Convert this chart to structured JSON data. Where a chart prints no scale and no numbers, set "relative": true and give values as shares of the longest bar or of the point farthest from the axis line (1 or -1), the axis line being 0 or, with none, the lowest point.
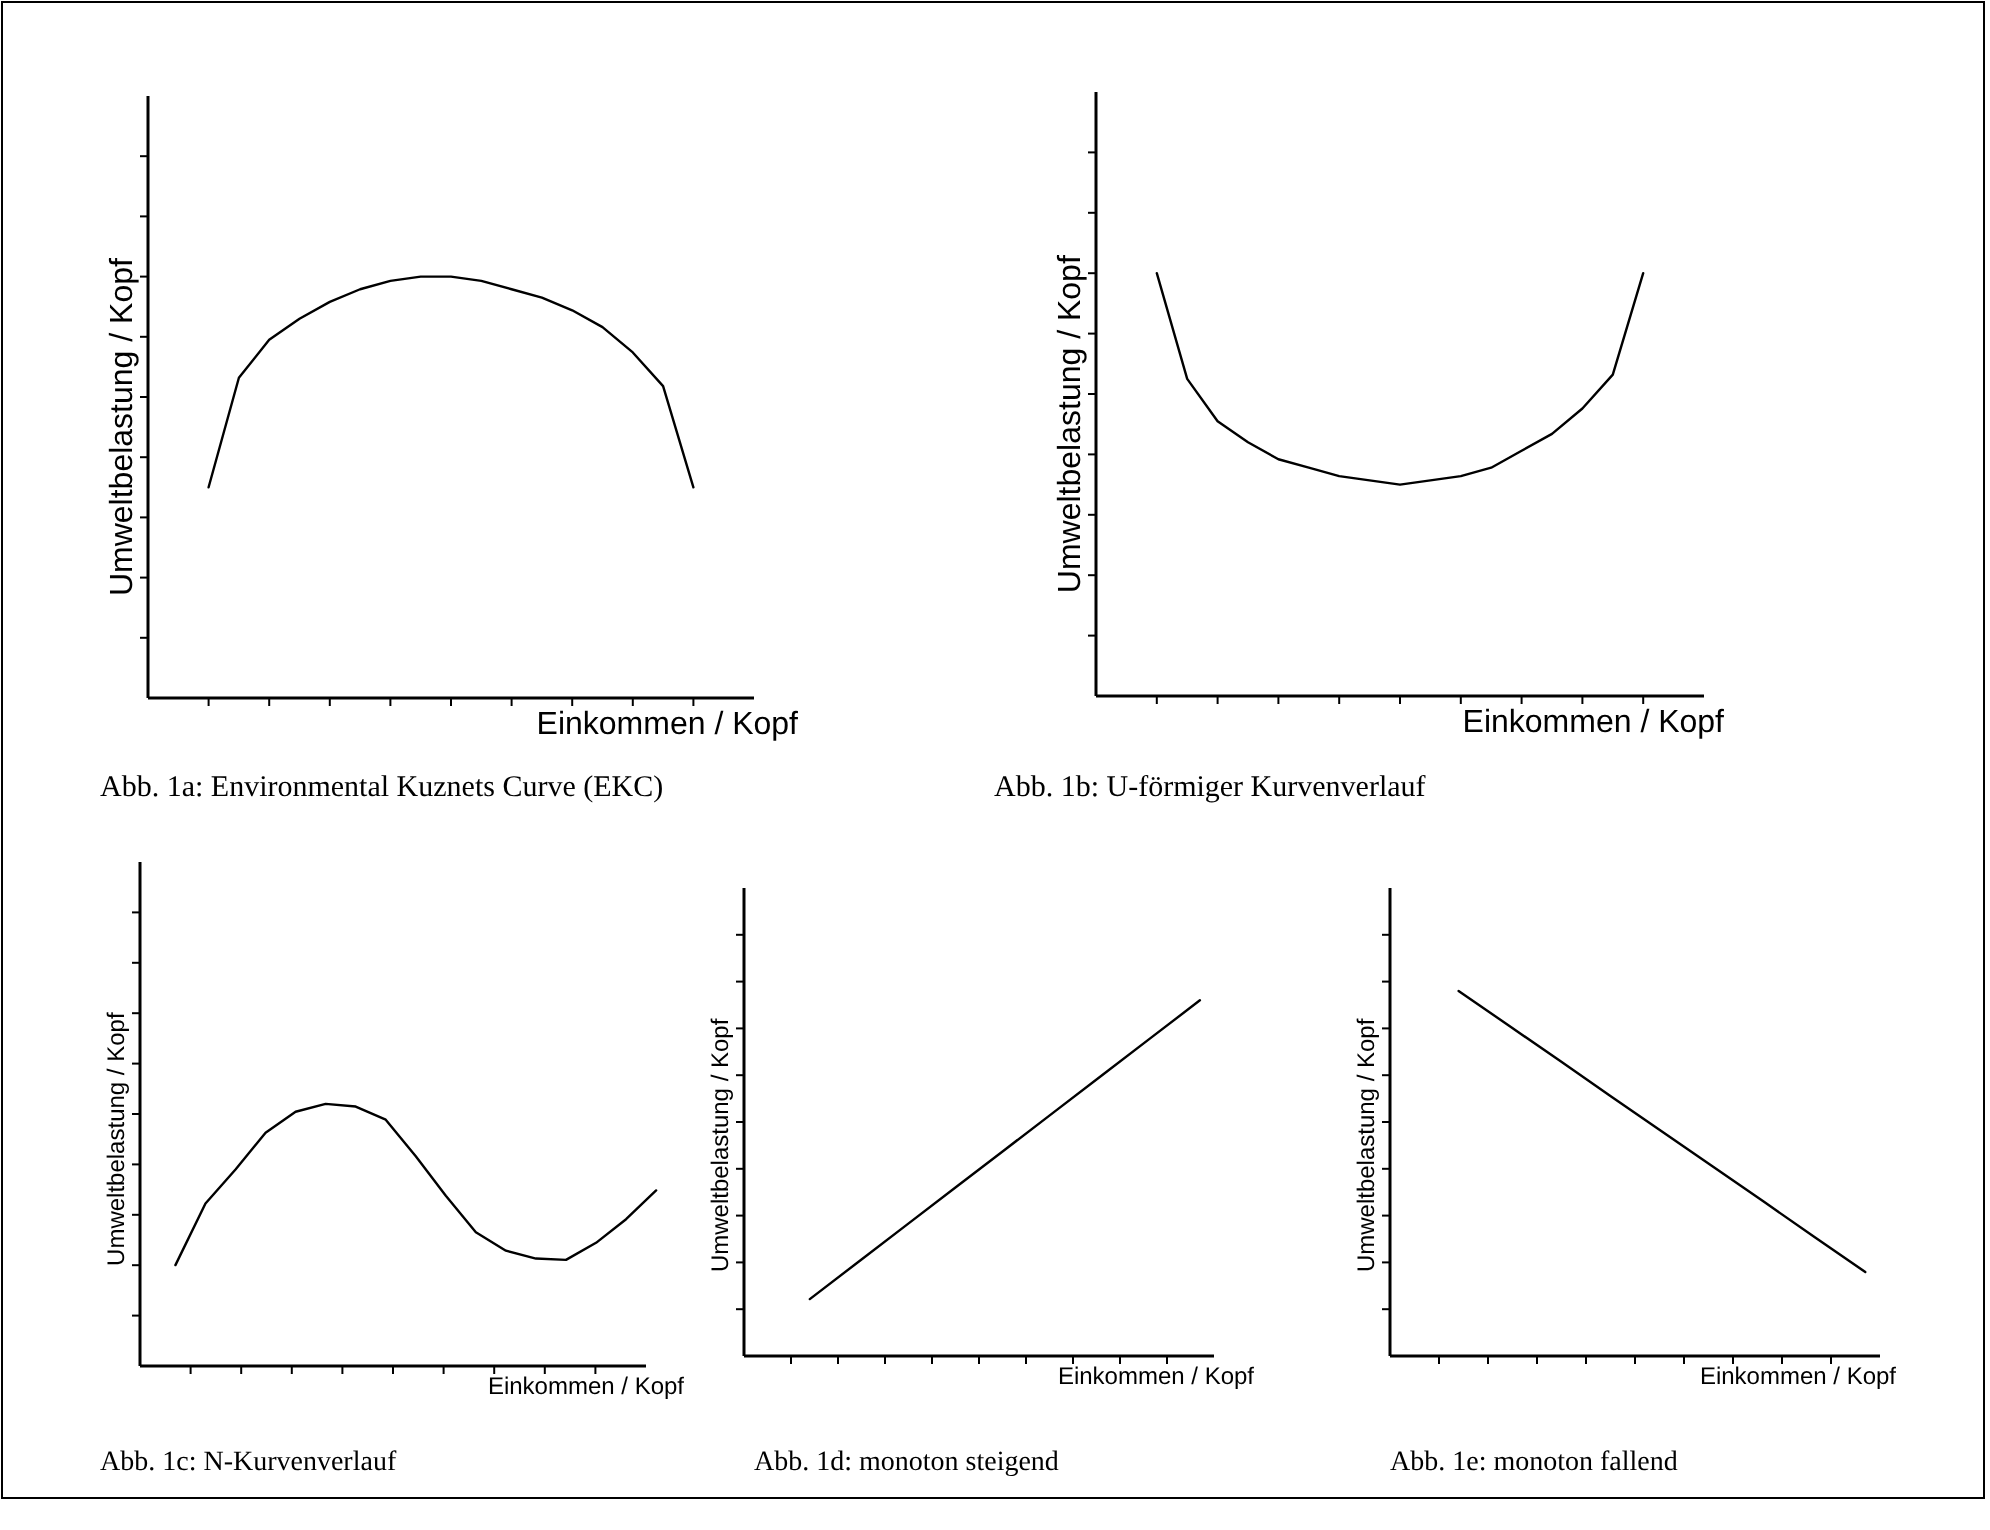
{
  "chart_data": [
    {
      "type": "line",
      "relative": true,
      "xlabel": "Einkommen / Kopf",
      "ylabel": "Umweltbelastung / Kopf",
      "annotations": [
        "Abb. 1a: Environmental Kuznets Curve (EKC)"
      ],
      "categories": [
        null,
        null,
        null,
        null,
        null,
        null,
        null,
        null,
        null,
        null,
        null,
        null,
        null,
        null,
        null,
        null,
        null
      ],
      "series": [
        {
          "color": "#000000",
          "values": [
            0.5,
            0.76,
            0.85,
            0.9,
            0.94,
            0.97,
            0.99,
            1,
            1,
            0.99,
            0.97,
            0.95,
            0.92,
            0.88,
            0.82,
            0.74,
            0.5
          ]
        }
      ]
    },
    {
      "type": "line",
      "relative": true,
      "xlabel": "Einkommen / Kopf",
      "ylabel": "Umweltbelastung / Kopf",
      "annotations": [
        "Abb. 1b: U-förmiger Kurvenverlauf"
      ],
      "categories": [
        null,
        null,
        null,
        null,
        null,
        null,
        null,
        null,
        null,
        null,
        null,
        null,
        null,
        null,
        null,
        null,
        null
      ],
      "series": [
        {
          "color": "#000000",
          "values": [
            1,
            0.75,
            0.65,
            0.6,
            0.56,
            0.54,
            0.52,
            0.51,
            0.5,
            0.51,
            0.52,
            0.54,
            0.58,
            0.62,
            0.68,
            0.76,
            1
          ]
        }
      ]
    },
    {
      "type": "line",
      "relative": true,
      "xlabel": "Einkommen / Kopf",
      "ylabel": "Umweltbelastung / Kopf",
      "annotations": [
        "Abb. 1c: N-Kurvenverlauf"
      ],
      "categories": [
        null,
        null,
        null,
        null,
        null,
        null,
        null,
        null,
        null,
        null,
        null,
        null,
        null,
        null,
        null,
        null,
        null
      ],
      "series": [
        {
          "color": "#000000",
          "values": [
            0.385,
            0.62,
            0.75,
            0.89,
            0.97,
            1,
            0.99,
            0.94,
            0.8,
            0.65,
            0.51,
            0.44,
            0.41,
            0.405,
            0.47,
            0.56,
            0.67
          ]
        }
      ]
    },
    {
      "type": "line",
      "relative": true,
      "xlabel": "Einkommen / Kopf",
      "ylabel": "Umweltbelastung / Kopf",
      "annotations": [
        "Abb. 1d: monoton steigend"
      ],
      "categories": [
        null,
        null,
        null,
        null,
        null,
        null,
        null,
        null,
        null
      ],
      "series": [
        {
          "color": "#000000",
          "values": [
            0.16,
            0.265,
            0.37,
            0.475,
            0.58,
            0.685,
            0.79,
            0.895,
            1
          ]
        }
      ]
    },
    {
      "type": "line",
      "relative": true,
      "xlabel": "Einkommen / Kopf",
      "ylabel": "Umweltbelastung / Kopf",
      "annotations": [
        "Abb. 1e: monoton fallend"
      ],
      "categories": [
        null,
        null,
        null,
        null,
        null,
        null,
        null,
        null,
        null
      ],
      "series": [
        {
          "color": "#000000",
          "values": [
            1,
            0.904,
            0.808,
            0.711,
            0.615,
            0.519,
            0.423,
            0.326,
            0.23
          ]
        }
      ]
    }
  ]
}
